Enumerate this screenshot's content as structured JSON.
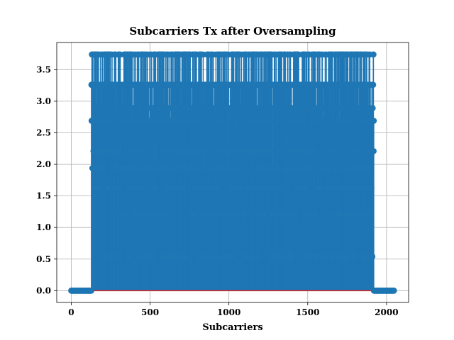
{
  "chart_data": {
    "type": "stem",
    "title": "Subcarriers Tx after Oversampling",
    "xlabel": "Subcarriers",
    "ylabel": "",
    "xlim": [
      -92,
      2140
    ],
    "ylim": [
      -0.187,
      3.93
    ],
    "grid": true,
    "xticks": [
      0,
      500,
      1000,
      1500,
      2000
    ],
    "xtick_labels": [
      "0",
      "500",
      "1000",
      "1500",
      "2000"
    ],
    "yticks": [
      0.0,
      0.5,
      1.0,
      1.5,
      2.0,
      2.5,
      3.0,
      3.5
    ],
    "ytick_labels": [
      "0.0",
      "0.5",
      "1.0",
      "1.5",
      "2.0",
      "2.5",
      "3.0",
      "3.5"
    ],
    "series": [
      {
        "name": "Subcarriers Tx",
        "color": "#1f77b4",
        "baseline_color": "#d62728",
        "num_points": 2048,
        "active_range": [
          128,
          1919
        ],
        "levels": [
          0.0,
          0.54,
          1.21,
          1.62,
          1.94,
          2.21,
          2.69,
          2.89,
          3.26,
          3.74
        ]
      }
    ]
  }
}
